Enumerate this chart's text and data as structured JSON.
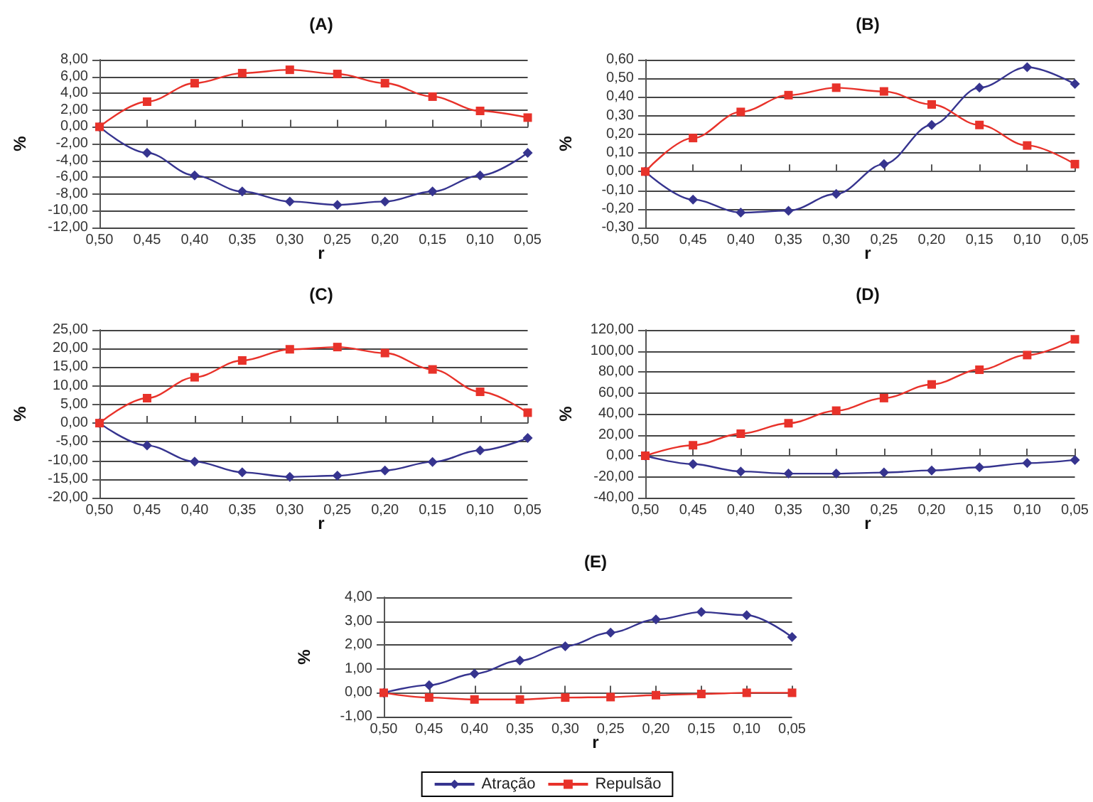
{
  "chart_data": [
    {
      "type": "line",
      "title": "(A)",
      "xlabel": "r",
      "ylabel": "%",
      "grid": "y",
      "legend": false,
      "categories": [
        "0,50",
        "0,45",
        "0,40",
        "0,35",
        "0,30",
        "0,25",
        "0,20",
        "0,15",
        "0,10",
        "0,05"
      ],
      "ylim": [
        -12,
        8
      ],
      "yticks": [
        {
          "value": -12,
          "label": "-12,00"
        },
        {
          "value": -10,
          "label": "-10,00"
        },
        {
          "value": -8,
          "label": "-8,00"
        },
        {
          "value": -6,
          "label": "-6,00"
        },
        {
          "value": -4,
          "label": "-4,00"
        },
        {
          "value": -2,
          "label": "-2,00"
        },
        {
          "value": 0,
          "label": "0,00"
        },
        {
          "value": 2,
          "label": "2,00"
        },
        {
          "value": 4,
          "label": "4,00"
        },
        {
          "value": 6,
          "label": "6,00"
        },
        {
          "value": 8,
          "label": "8,00"
        }
      ],
      "series": [
        {
          "color": "#36348f",
          "marker": "diamond",
          "values": [
            0,
            -3.1,
            -5.8,
            -7.7,
            -8.9,
            -9.3,
            -8.9,
            -7.7,
            -5.8,
            -3.1
          ]
        },
        {
          "color": "#e8322a",
          "marker": "square",
          "values": [
            0,
            3.0,
            5.2,
            6.4,
            6.8,
            6.3,
            5.2,
            3.6,
            1.9,
            1.1
          ]
        }
      ]
    },
    {
      "type": "line",
      "title": "(B)",
      "xlabel": "r",
      "ylabel": "%",
      "grid": "y",
      "legend": false,
      "categories": [
        "0,50",
        "0,45",
        "0,40",
        "0,35",
        "0,30",
        "0,25",
        "0,20",
        "0,15",
        "0,10",
        "0,05"
      ],
      "ylim": [
        -0.3,
        0.6
      ],
      "yticks": [
        {
          "value": -0.3,
          "label": "-0,30"
        },
        {
          "value": -0.2,
          "label": "-0,20"
        },
        {
          "value": -0.1,
          "label": "-0,10"
        },
        {
          "value": 0,
          "label": "0,00"
        },
        {
          "value": 0.1,
          "label": "0,10"
        },
        {
          "value": 0.2,
          "label": "0,20"
        },
        {
          "value": 0.3,
          "label": "0,30"
        },
        {
          "value": 0.4,
          "label": "0,40"
        },
        {
          "value": 0.5,
          "label": "0,50"
        },
        {
          "value": 0.6,
          "label": "0,60"
        }
      ],
      "series": [
        {
          "color": "#36348f",
          "marker": "diamond",
          "values": [
            0,
            -0.15,
            -0.22,
            -0.21,
            -0.12,
            0.04,
            0.25,
            0.45,
            0.56,
            0.47
          ]
        },
        {
          "color": "#e8322a",
          "marker": "square",
          "values": [
            0,
            0.18,
            0.32,
            0.41,
            0.45,
            0.43,
            0.36,
            0.25,
            0.14,
            0.04
          ]
        }
      ]
    },
    {
      "type": "line",
      "title": "(C)",
      "xlabel": "r",
      "ylabel": "%",
      "grid": "y",
      "legend": false,
      "categories": [
        "0,50",
        "0,45",
        "0,40",
        "0,35",
        "0,30",
        "0,25",
        "0,20",
        "0,15",
        "0,10",
        "0,05"
      ],
      "ylim": [
        -20,
        25
      ],
      "yticks": [
        {
          "value": -20,
          "label": "-20,00"
        },
        {
          "value": -15,
          "label": "-15,00"
        },
        {
          "value": -10,
          "label": "-10,00"
        },
        {
          "value": -5,
          "label": "-5,00"
        },
        {
          "value": 0,
          "label": "0,00"
        },
        {
          "value": 5,
          "label": "5,00"
        },
        {
          "value": 10,
          "label": "10,00"
        },
        {
          "value": 15,
          "label": "15,00"
        },
        {
          "value": 20,
          "label": "20,00"
        },
        {
          "value": 25,
          "label": "25,00"
        }
      ],
      "series": [
        {
          "color": "#36348f",
          "marker": "diamond",
          "values": [
            0,
            -6.0,
            -10.3,
            -13.2,
            -14.4,
            -14.1,
            -12.7,
            -10.4,
            -7.3,
            -4.0
          ]
        },
        {
          "color": "#e8322a",
          "marker": "square",
          "values": [
            0,
            6.7,
            12.3,
            16.8,
            19.8,
            20.4,
            18.8,
            14.4,
            8.4,
            2.8
          ]
        }
      ]
    },
    {
      "type": "line",
      "title": "(D)",
      "xlabel": "r",
      "ylabel": "%",
      "grid": "y",
      "legend": false,
      "categories": [
        "0,50",
        "0,45",
        "0,40",
        "0,35",
        "0,30",
        "0,25",
        "0,20",
        "0,15",
        "0,10",
        "0,05"
      ],
      "ylim": [
        -40,
        120
      ],
      "yticks": [
        {
          "value": -40,
          "label": "-40,00"
        },
        {
          "value": -20,
          "label": "-20,00"
        },
        {
          "value": 0,
          "label": "0,00"
        },
        {
          "value": 20,
          "label": "20,00"
        },
        {
          "value": 40,
          "label": "40,00"
        },
        {
          "value": 60,
          "label": "60,00"
        },
        {
          "value": 80,
          "label": "80,00"
        },
        {
          "value": 100,
          "label": "100,00"
        },
        {
          "value": 120,
          "label": "120,00"
        }
      ],
      "series": [
        {
          "color": "#36348f",
          "marker": "diamond",
          "values": [
            0,
            -8,
            -15,
            -17,
            -17,
            -16,
            -14,
            -11,
            -7,
            -4
          ]
        },
        {
          "color": "#e8322a",
          "marker": "square",
          "values": [
            0,
            10,
            21,
            31,
            43,
            55,
            68,
            82,
            96,
            111
          ]
        }
      ]
    },
    {
      "type": "line",
      "title": "(E)",
      "xlabel": "r",
      "ylabel": "%",
      "grid": "y",
      "legend": "bottom",
      "categories": [
        "0,50",
        "0,45",
        "0,40",
        "0,35",
        "0,30",
        "0,25",
        "0,20",
        "0,15",
        "0,10",
        "0,05"
      ],
      "ylim": [
        -1,
        4
      ],
      "yticks": [
        {
          "value": -1,
          "label": "-1,00"
        },
        {
          "value": 0,
          "label": "0,00"
        },
        {
          "value": 1,
          "label": "1,00"
        },
        {
          "value": 2,
          "label": "2,00"
        },
        {
          "value": 3,
          "label": "3,00"
        },
        {
          "value": 4,
          "label": "4,00"
        }
      ],
      "series": [
        {
          "name": "Atração",
          "color": "#36348f",
          "marker": "diamond",
          "values": [
            0,
            0.32,
            0.8,
            1.35,
            1.95,
            2.52,
            3.07,
            3.38,
            3.25,
            2.33
          ]
        },
        {
          "name": "Repulsão",
          "color": "#e8322a",
          "marker": "square",
          "values": [
            0,
            -0.2,
            -0.28,
            -0.28,
            -0.2,
            -0.18,
            -0.1,
            -0.05,
            0.0,
            0.0
          ]
        }
      ]
    }
  ]
}
